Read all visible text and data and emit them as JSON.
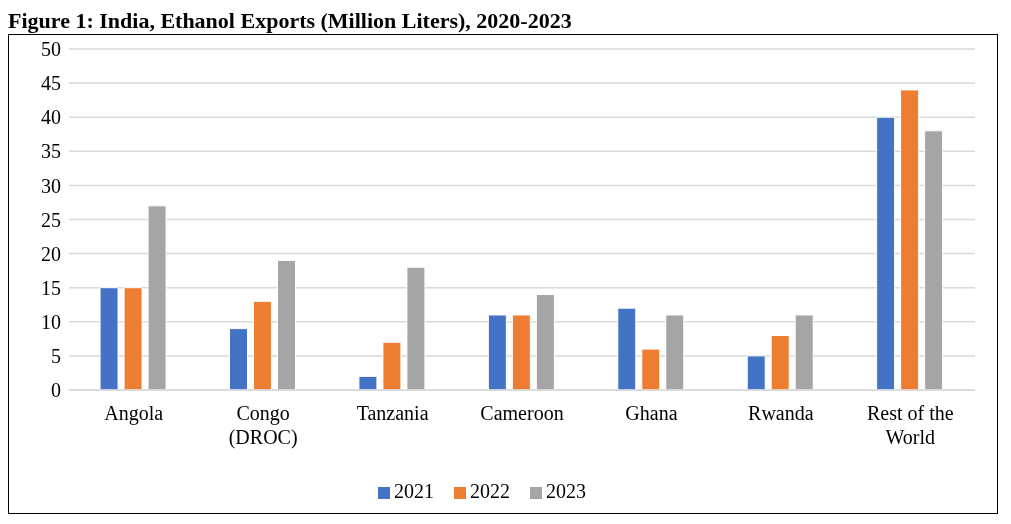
{
  "chart_data": {
    "type": "bar",
    "title": "Figure 1: India, Ethanol Exports (Million Liters), 2020-2023",
    "categories": [
      "Angola",
      "Congo (DROC)",
      "Tanzania",
      "Cameroon",
      "Ghana",
      "Rwanda",
      "Rest of the World"
    ],
    "series": [
      {
        "name": "2021",
        "color": "#4472c4",
        "values": [
          15,
          9,
          2,
          11,
          12,
          5,
          40
        ]
      },
      {
        "name": "2022",
        "color": "#ed7d31",
        "values": [
          15,
          13,
          7,
          11,
          6,
          8,
          44
        ]
      },
      {
        "name": "2023",
        "color": "#a5a5a5",
        "values": [
          27,
          19,
          18,
          14,
          11,
          11,
          38
        ]
      }
    ],
    "ylim": [
      0,
      50
    ],
    "yticks": [
      0,
      5,
      10,
      15,
      20,
      25,
      30,
      35,
      40,
      45,
      50
    ],
    "grid": "y",
    "legend": "bottom"
  }
}
